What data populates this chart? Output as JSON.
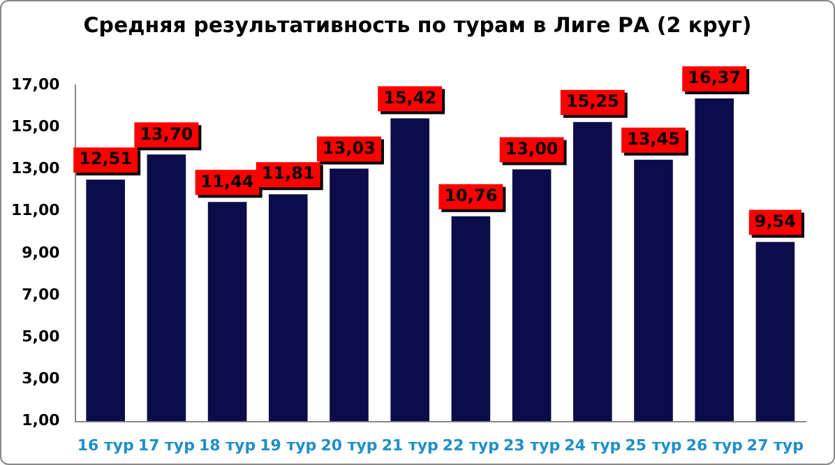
{
  "chart_data": {
    "type": "bar",
    "title": "Средняя результативность по турам в Лиге РА (2 круг)",
    "categories": [
      "16 тур",
      "17 тур",
      "18 тур",
      "19 тур",
      "20 тур",
      "21 тур",
      "22 тур",
      "23 тур",
      "24 тур",
      "25 тур",
      "26 тур",
      "27 тур"
    ],
    "values": [
      12.51,
      13.7,
      11.44,
      11.81,
      13.03,
      15.42,
      10.76,
      13.0,
      15.25,
      13.45,
      16.37,
      9.54
    ],
    "value_labels": [
      "12,51",
      "13,70",
      "11,44",
      "11,81",
      "13,03",
      "15,42",
      "10,76",
      "13,00",
      "15,25",
      "13,45",
      "16,37",
      "9,54"
    ],
    "color": "#0c0c4a",
    "ylim": [
      1,
      17
    ],
    "yticks": [
      {
        "value": 1,
        "label": "1,00"
      },
      {
        "value": 3,
        "label": "3,00"
      },
      {
        "value": 5,
        "label": "5,00"
      },
      {
        "value": 7,
        "label": "7,00"
      },
      {
        "value": 9,
        "label": "9,00"
      },
      {
        "value": 11,
        "label": "11,00"
      },
      {
        "value": 13,
        "label": "13,00"
      },
      {
        "value": 15,
        "label": "15,00"
      },
      {
        "value": 17,
        "label": "17,00"
      }
    ],
    "grid": false,
    "legend": false
  }
}
